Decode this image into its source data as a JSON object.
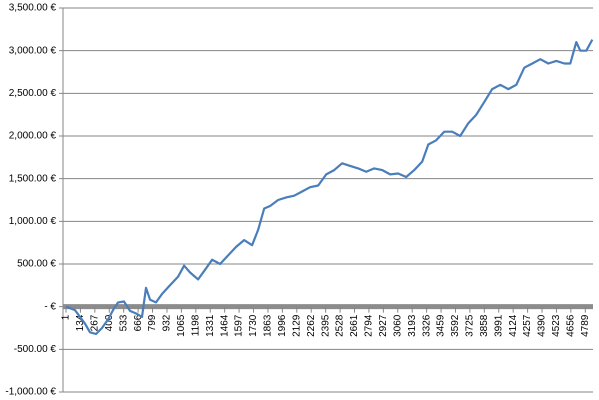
{
  "chart_data": {
    "type": "line",
    "x": [
      1,
      84,
      176,
      222,
      278,
      333,
      388,
      444,
      481,
      536,
      591,
      647,
      702,
      739,
      776,
      831,
      887,
      960,
      1034,
      1090,
      1145,
      1219,
      1293,
      1348,
      1422,
      1495,
      1569,
      1643,
      1717,
      1772,
      1828,
      1883,
      1957,
      2031,
      2105,
      2178,
      2252,
      2326,
      2400,
      2474,
      2547,
      2621,
      2695,
      2769,
      2843,
      2917,
      2990,
      3064,
      3138,
      3211,
      3285,
      3341,
      3414,
      3488,
      3562,
      3636,
      3710,
      3784,
      3858,
      3931,
      4005,
      4079,
      4153,
      4227,
      4300,
      4374,
      4448,
      4522,
      4596,
      4651,
      4706,
      4743,
      4798,
      4854
    ],
    "series": [
      {
        "color": "#4a7ebb",
        "values": [
          0,
          -40,
          -200,
          -300,
          -320,
          -250,
          -150,
          -20,
          50,
          60,
          -50,
          -80,
          -120,
          220,
          80,
          50,
          150,
          250,
          350,
          480,
          400,
          320,
          450,
          550,
          500,
          600,
          700,
          780,
          720,
          900,
          1150,
          1180,
          1250,
          1280,
          1300,
          1350,
          1400,
          1420,
          1550,
          1600,
          1680,
          1650,
          1620,
          1580,
          1620,
          1600,
          1550,
          1560,
          1520,
          1600,
          1700,
          1900,
          1950,
          2050,
          2050,
          2000,
          2150,
          2250,
          2400,
          2550,
          2600,
          2550,
          2600,
          2800,
          2850,
          2900,
          2850,
          2880,
          2850,
          2850,
          3100,
          3000,
          3000,
          3130
        ]
      }
    ],
    "xlim": [
      1,
      4860
    ],
    "xticks": [
      1,
      134,
      267,
      400,
      533,
      666,
      799,
      932,
      1065,
      1198,
      1331,
      1464,
      1597,
      1730,
      1863,
      1996,
      2129,
      2262,
      2395,
      2528,
      2661,
      2794,
      2927,
      3060,
      3193,
      3326,
      3459,
      3592,
      3725,
      3858,
      3991,
      4124,
      4257,
      4390,
      4523,
      4656,
      4789
    ],
    "ylim": [
      -1000,
      3500
    ],
    "yticks": [
      {
        "value": -1000,
        "label": "-1,000.00 €"
      },
      {
        "value": -500,
        "label": "-500.00 €"
      },
      {
        "value": 0,
        "label": "-   €"
      },
      {
        "value": 500,
        "label": "500.00 €"
      },
      {
        "value": 1000,
        "label": "1,000.00 €"
      },
      {
        "value": 1500,
        "label": "1,500.00 €"
      },
      {
        "value": 2000,
        "label": "2,000.00 €"
      },
      {
        "value": 2500,
        "label": "2,500.00 €"
      },
      {
        "value": 3000,
        "label": "3,000.00 €"
      },
      {
        "value": 3500,
        "label": "3,500.00 €"
      }
    ],
    "grid": true
  }
}
